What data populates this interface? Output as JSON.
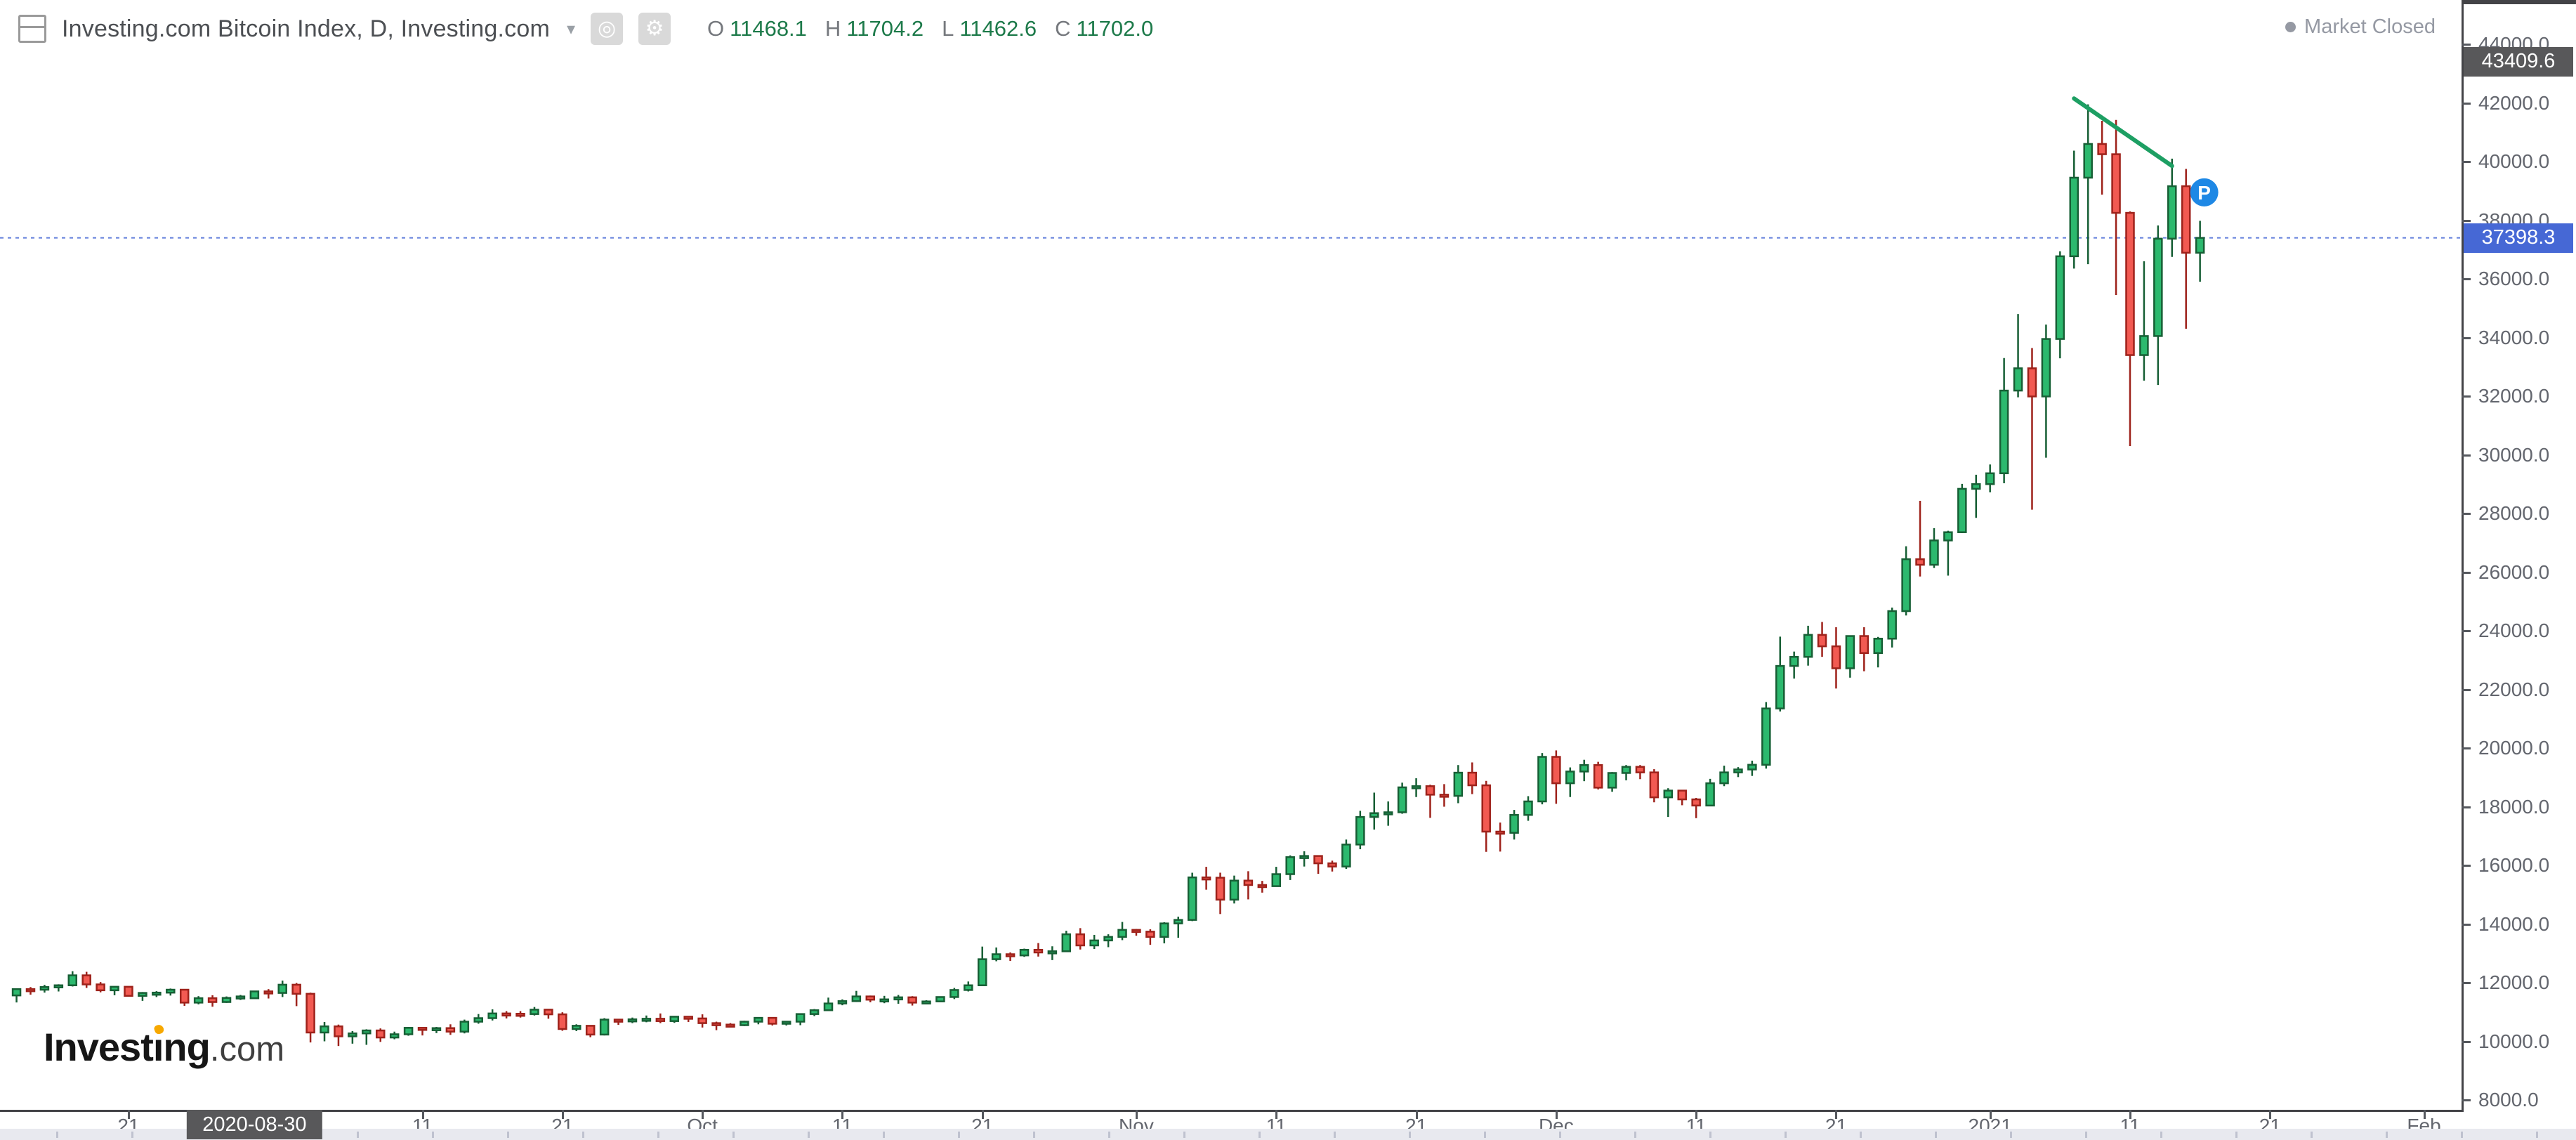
{
  "header": {
    "title": "Investing.com Bitcoin Index, D, Investing.com",
    "caret": "▾",
    "buttons": [
      {
        "name": "snapshot",
        "glyph": "◎"
      },
      {
        "name": "settings",
        "glyph": "⚙"
      }
    ],
    "ohlc": [
      {
        "key": "O",
        "value": "11468.1"
      },
      {
        "key": "H",
        "value": "11704.2"
      },
      {
        "key": "L",
        "value": "11462.6"
      },
      {
        "key": "C",
        "value": "11702.0"
      }
    ]
  },
  "status": {
    "market": "Market Closed"
  },
  "watermark": {
    "brand_head": "Invest",
    "brand_i": "ı",
    "brand_tail": "ng",
    "suffix": ".com"
  },
  "price_axis": {
    "crosshair_label": "43409.6",
    "last_price_label": "37398.3",
    "crosshair_price": 43409.6,
    "label_colors": {
      "crosshair_bg": "#58585a",
      "last_price_bg": "#4668d5"
    }
  },
  "time_axis": {
    "crosshair_label": "2020-08-30",
    "crosshair_date": "2020-08-30",
    "ticks": [
      {
        "label": "21",
        "date": "2020-08-21"
      },
      {
        "label": "11",
        "date": "2020-09-11"
      },
      {
        "label": "21",
        "date": "2020-09-21"
      },
      {
        "label": "Oct",
        "date": "2020-10-01"
      },
      {
        "label": "11",
        "date": "2020-10-11"
      },
      {
        "label": "21",
        "date": "2020-10-21"
      },
      {
        "label": "Nov",
        "date": "2020-11-01"
      },
      {
        "label": "11",
        "date": "2020-11-11"
      },
      {
        "label": "21",
        "date": "2020-11-21"
      },
      {
        "label": "Dec",
        "date": "2020-12-01"
      },
      {
        "label": "11",
        "date": "2020-12-11"
      },
      {
        "label": "21",
        "date": "2020-12-21"
      },
      {
        "label": "2021",
        "date": "2021-01-01"
      },
      {
        "label": "11",
        "date": "2021-01-11"
      },
      {
        "label": "21",
        "date": "2021-01-21"
      },
      {
        "label": "Feb",
        "date": "2021-02-01"
      }
    ]
  },
  "chart_data": {
    "type": "candlestick",
    "title": "Investing.com Bitcoin Index",
    "interval": "D",
    "last_price": 37398.3,
    "y_axis": {
      "tick_min": 8000,
      "tick_max": 44000,
      "tick_step": 2000,
      "format_suffix": ".0"
    },
    "colors": {
      "up_fill": "#2cb96e",
      "up_stroke": "#175f35",
      "down_fill": "#f25a52",
      "down_stroke": "#9e221b",
      "trendline": "#1d9f63",
      "last_price_line": "#4668d5",
      "marker_bg": "#1e88e5",
      "marker_fg": "#ffffff"
    },
    "trendline": {
      "from": {
        "date": "2021-01-07",
        "price": 42150
      },
      "to": {
        "date": "2021-01-14",
        "price": 39850
      }
    },
    "marker": {
      "label": "P",
      "date": "2021-01-16",
      "price": 38950
    },
    "candles": [
      [
        "2020-08-13",
        11565,
        11790,
        11325,
        11780
      ],
      [
        "2020-08-14",
        11780,
        11850,
        11590,
        11760
      ],
      [
        "2020-08-15",
        11760,
        11925,
        11660,
        11850
      ],
      [
        "2020-08-16",
        11850,
        11945,
        11700,
        11910
      ],
      [
        "2020-08-17",
        11910,
        12390,
        11870,
        12250
      ],
      [
        "2020-08-18",
        12250,
        12370,
        11820,
        11940
      ],
      [
        "2020-08-19",
        11940,
        12020,
        11670,
        11740
      ],
      [
        "2020-08-20",
        11740,
        11880,
        11570,
        11860
      ],
      [
        "2020-08-21",
        11860,
        11880,
        11520,
        11550
      ],
      [
        "2020-08-22",
        11550,
        11680,
        11380,
        11650
      ],
      [
        "2020-08-23",
        11650,
        11710,
        11510,
        11660
      ],
      [
        "2020-08-24",
        11660,
        11800,
        11560,
        11760
      ],
      [
        "2020-08-25",
        11760,
        11770,
        11210,
        11320
      ],
      [
        "2020-08-26",
        11320,
        11540,
        11260,
        11470
      ],
      [
        "2020-08-27",
        11470,
        11570,
        11180,
        11340
      ],
      [
        "2020-08-28",
        11340,
        11530,
        11310,
        11480
      ],
      [
        "2020-08-29",
        11480,
        11580,
        11410,
        11530
      ],
      [
        "2020-08-30",
        11468.1,
        11704.2,
        11462.6,
        11702.0
      ],
      [
        "2020-08-31",
        11702,
        11780,
        11460,
        11650
      ],
      [
        "2020-09-01",
        11650,
        12070,
        11510,
        11930
      ],
      [
        "2020-09-02",
        11930,
        11990,
        11200,
        11620
      ],
      [
        "2020-09-03",
        11620,
        11660,
        9960,
        10300
      ],
      [
        "2020-09-04",
        10300,
        10660,
        10000,
        10510
      ],
      [
        "2020-09-05",
        10510,
        10570,
        9840,
        10170
      ],
      [
        "2020-09-06",
        10170,
        10350,
        9920,
        10270
      ],
      [
        "2020-09-07",
        10270,
        10410,
        9880,
        10370
      ],
      [
        "2020-09-08",
        10370,
        10440,
        9980,
        10130
      ],
      [
        "2020-09-09",
        10130,
        10330,
        10070,
        10240
      ],
      [
        "2020-09-10",
        10240,
        10490,
        10190,
        10460
      ],
      [
        "2020-09-11",
        10460,
        10480,
        10200,
        10400
      ],
      [
        "2020-09-12",
        10400,
        10490,
        10280,
        10450
      ],
      [
        "2020-09-13",
        10450,
        10580,
        10220,
        10330
      ],
      [
        "2020-09-14",
        10330,
        10740,
        10270,
        10670
      ],
      [
        "2020-09-15",
        10670,
        10930,
        10600,
        10790
      ],
      [
        "2020-09-16",
        10790,
        11090,
        10710,
        10950
      ],
      [
        "2020-09-17",
        10950,
        11030,
        10780,
        10940
      ],
      [
        "2020-09-18",
        10940,
        11030,
        10810,
        10930
      ],
      [
        "2020-09-19",
        10930,
        11170,
        10880,
        11080
      ],
      [
        "2020-09-20",
        11080,
        11090,
        10770,
        10920
      ],
      [
        "2020-09-21",
        10920,
        10990,
        10360,
        10420
      ],
      [
        "2020-09-22",
        10420,
        10580,
        10350,
        10530
      ],
      [
        "2020-09-23",
        10530,
        10540,
        10140,
        10230
      ],
      [
        "2020-09-24",
        10230,
        10790,
        10200,
        10740
      ],
      [
        "2020-09-25",
        10740,
        10760,
        10560,
        10690
      ],
      [
        "2020-09-26",
        10690,
        10810,
        10620,
        10750
      ],
      [
        "2020-09-27",
        10750,
        10880,
        10650,
        10770
      ],
      [
        "2020-09-28",
        10770,
        10950,
        10620,
        10690
      ],
      [
        "2020-09-29",
        10690,
        10860,
        10630,
        10840
      ],
      [
        "2020-09-30",
        10840,
        10860,
        10660,
        10780
      ],
      [
        "2020-10-01",
        10780,
        10920,
        10470,
        10620
      ],
      [
        "2020-10-02",
        10620,
        10670,
        10380,
        10570
      ],
      [
        "2020-10-03",
        10570,
        10620,
        10510,
        10550
      ],
      [
        "2020-10-04",
        10550,
        10700,
        10520,
        10670
      ],
      [
        "2020-10-05",
        10670,
        10800,
        10580,
        10800
      ],
      [
        "2020-10-06",
        10800,
        10810,
        10540,
        10600
      ],
      [
        "2020-10-07",
        10600,
        10680,
        10540,
        10670
      ],
      [
        "2020-10-08",
        10670,
        10950,
        10550,
        10930
      ],
      [
        "2020-10-09",
        10930,
        11100,
        10860,
        11060
      ],
      [
        "2020-10-10",
        11060,
        11490,
        11040,
        11290
      ],
      [
        "2020-10-11",
        11290,
        11430,
        11230,
        11370
      ],
      [
        "2020-10-12",
        11370,
        11720,
        11340,
        11530
      ],
      [
        "2020-10-13",
        11530,
        11560,
        11330,
        11420
      ],
      [
        "2020-10-14",
        11420,
        11550,
        11300,
        11430
      ],
      [
        "2020-10-15",
        11430,
        11580,
        11280,
        11500
      ],
      [
        "2020-10-16",
        11500,
        11540,
        11220,
        11320
      ],
      [
        "2020-10-17",
        11320,
        11400,
        11270,
        11360
      ],
      [
        "2020-10-18",
        11360,
        11520,
        11340,
        11510
      ],
      [
        "2020-10-19",
        11510,
        11820,
        11440,
        11750
      ],
      [
        "2020-10-20",
        11750,
        12040,
        11700,
        11910
      ],
      [
        "2020-10-21",
        11910,
        13230,
        11890,
        12800
      ],
      [
        "2020-10-22",
        12800,
        13200,
        12730,
        12970
      ],
      [
        "2020-10-23",
        12970,
        13030,
        12740,
        12930
      ],
      [
        "2020-10-24",
        12930,
        13160,
        12880,
        13120
      ],
      [
        "2020-10-25",
        13120,
        13350,
        12890,
        13030
      ],
      [
        "2020-10-26",
        13030,
        13240,
        12770,
        13070
      ],
      [
        "2020-10-27",
        13070,
        13770,
        13060,
        13650
      ],
      [
        "2020-10-28",
        13650,
        13860,
        13130,
        13270
      ],
      [
        "2020-10-29",
        13270,
        13630,
        13150,
        13440
      ],
      [
        "2020-10-30",
        13440,
        13650,
        13210,
        13560
      ],
      [
        "2020-10-31",
        13560,
        14070,
        13450,
        13800
      ],
      [
        "2020-11-01",
        13800,
        13830,
        13600,
        13740
      ],
      [
        "2020-11-02",
        13740,
        13820,
        13290,
        13560
      ],
      [
        "2020-11-03",
        13560,
        14060,
        13340,
        14020
      ],
      [
        "2020-11-04",
        14020,
        14250,
        13530,
        14140
      ],
      [
        "2020-11-05",
        14140,
        15750,
        14100,
        15590
      ],
      [
        "2020-11-06",
        15590,
        15950,
        15170,
        15580
      ],
      [
        "2020-11-07",
        15580,
        15750,
        14340,
        14830
      ],
      [
        "2020-11-08",
        14830,
        15650,
        14700,
        15480
      ],
      [
        "2020-11-09",
        15480,
        15800,
        14840,
        15330
      ],
      [
        "2020-11-10",
        15330,
        15470,
        15070,
        15290
      ],
      [
        "2020-11-11",
        15290,
        15950,
        15270,
        15700
      ],
      [
        "2020-11-12",
        15700,
        16340,
        15500,
        16280
      ],
      [
        "2020-11-13",
        16280,
        16480,
        15960,
        16320
      ],
      [
        "2020-11-14",
        16320,
        16330,
        15710,
        16070
      ],
      [
        "2020-11-15",
        16070,
        16160,
        15790,
        15960
      ],
      [
        "2020-11-16",
        15960,
        16880,
        15880,
        16710
      ],
      [
        "2020-11-17",
        16710,
        17860,
        16550,
        17650
      ],
      [
        "2020-11-18",
        17650,
        18480,
        17220,
        17780
      ],
      [
        "2020-11-19",
        17780,
        18180,
        17350,
        17810
      ],
      [
        "2020-11-20",
        17810,
        18820,
        17760,
        18660
      ],
      [
        "2020-11-21",
        18660,
        18970,
        18330,
        18700
      ],
      [
        "2020-11-22",
        18700,
        18750,
        17620,
        18410
      ],
      [
        "2020-11-23",
        18410,
        18770,
        18000,
        18370
      ],
      [
        "2020-11-24",
        18370,
        19420,
        18120,
        19160
      ],
      [
        "2020-11-25",
        19160,
        19510,
        18430,
        18730
      ],
      [
        "2020-11-26",
        18730,
        18880,
        16460,
        17150
      ],
      [
        "2020-11-27",
        17150,
        17460,
        16470,
        17110
      ],
      [
        "2020-11-28",
        17110,
        17890,
        16880,
        17720
      ],
      [
        "2020-11-29",
        17720,
        18360,
        17520,
        18180
      ],
      [
        "2020-11-30",
        18180,
        19830,
        18080,
        19700
      ],
      [
        "2020-12-01",
        19700,
        19920,
        18100,
        18800
      ],
      [
        "2020-12-02",
        18800,
        19340,
        18330,
        19200
      ],
      [
        "2020-12-03",
        19200,
        19600,
        18870,
        19420
      ],
      [
        "2020-12-04",
        19420,
        19530,
        18590,
        18650
      ],
      [
        "2020-12-05",
        18650,
        19180,
        18510,
        19150
      ],
      [
        "2020-12-06",
        19150,
        19420,
        18900,
        19360
      ],
      [
        "2020-12-07",
        19360,
        19420,
        18940,
        19170
      ],
      [
        "2020-12-08",
        19170,
        19280,
        18150,
        18320
      ],
      [
        "2020-12-09",
        18320,
        18630,
        17650,
        18550
      ],
      [
        "2020-12-10",
        18550,
        18560,
        18050,
        18250
      ],
      [
        "2020-12-11",
        18250,
        18300,
        17610,
        18040
      ],
      [
        "2020-12-12",
        18040,
        18950,
        18020,
        18800
      ],
      [
        "2020-12-13",
        18800,
        19400,
        18700,
        19170
      ],
      [
        "2020-12-14",
        19170,
        19350,
        19010,
        19270
      ],
      [
        "2020-12-15",
        19270,
        19570,
        19050,
        19430
      ],
      [
        "2020-12-16",
        19430,
        21570,
        19300,
        21350
      ],
      [
        "2020-12-17",
        21350,
        23800,
        21250,
        22800
      ],
      [
        "2020-12-18",
        22800,
        23290,
        22370,
        23110
      ],
      [
        "2020-12-19",
        23110,
        24170,
        22810,
        23860
      ],
      [
        "2020-12-20",
        23860,
        24300,
        23110,
        23470
      ],
      [
        "2020-12-21",
        23470,
        24120,
        22030,
        22720
      ],
      [
        "2020-12-22",
        22720,
        23840,
        22400,
        23820
      ],
      [
        "2020-12-23",
        23820,
        24120,
        22620,
        23240
      ],
      [
        "2020-12-24",
        23240,
        23790,
        22750,
        23730
      ],
      [
        "2020-12-25",
        23730,
        24790,
        23430,
        24670
      ],
      [
        "2020-12-26",
        24670,
        26880,
        24520,
        26440
      ],
      [
        "2020-12-27",
        26440,
        28430,
        25850,
        26250
      ],
      [
        "2020-12-28",
        26250,
        27500,
        26140,
        27080
      ],
      [
        "2020-12-29",
        27080,
        27410,
        25880,
        27360
      ],
      [
        "2020-12-30",
        27360,
        29010,
        27330,
        28840
      ],
      [
        "2020-12-31",
        28840,
        29320,
        27850,
        29000
      ],
      [
        "2021-01-01",
        29000,
        29670,
        28720,
        29370
      ],
      [
        "2021-01-02",
        29370,
        33300,
        29030,
        32190
      ],
      [
        "2021-01-03",
        32190,
        34800,
        31960,
        32950
      ],
      [
        "2021-01-04",
        32950,
        33640,
        28130,
        31990
      ],
      [
        "2021-01-05",
        31990,
        34440,
        29900,
        33950
      ],
      [
        "2021-01-06",
        33950,
        36940,
        33290,
        36770
      ],
      [
        "2021-01-07",
        36770,
        40370,
        36350,
        39450
      ],
      [
        "2021-01-08",
        39450,
        41950,
        36500,
        40600
      ],
      [
        "2021-01-09",
        40600,
        41390,
        38870,
        40250
      ],
      [
        "2021-01-10",
        40250,
        41420,
        35450,
        38250
      ],
      [
        "2021-01-11",
        38250,
        38300,
        30300,
        33400
      ],
      [
        "2021-01-12",
        33400,
        36600,
        32530,
        34050
      ],
      [
        "2021-01-13",
        34050,
        37820,
        32380,
        37370
      ],
      [
        "2021-01-14",
        37370,
        40100,
        36750,
        39160
      ],
      [
        "2021-01-15",
        39160,
        39750,
        34300,
        36890
      ],
      [
        "2021-01-16",
        36890,
        37980,
        35900,
        37398.3
      ]
    ]
  }
}
